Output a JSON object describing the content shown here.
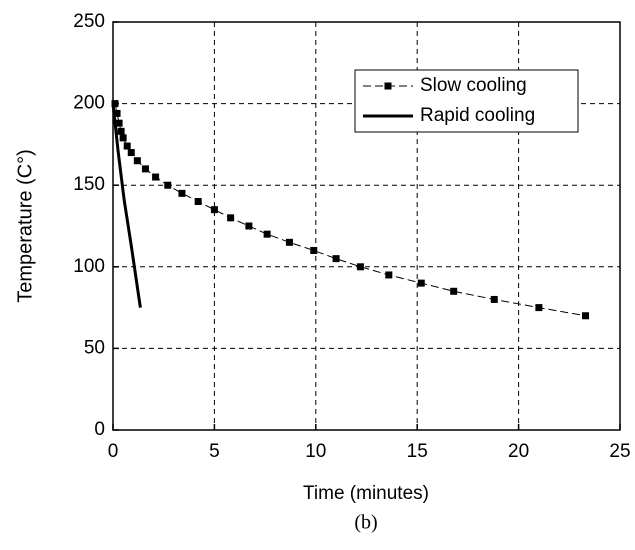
{
  "chart_data": {
    "type": "line",
    "xlabel": "Time (minutes)",
    "ylabel": "Temperature (C°)",
    "caption": "(b)",
    "xlim": [
      0,
      25
    ],
    "xticks": [
      0,
      5,
      10,
      15,
      20,
      25
    ],
    "ylim": [
      0,
      250
    ],
    "yticks": [
      0,
      50,
      100,
      150,
      200,
      250
    ],
    "grid": true,
    "legend": "upper right",
    "series": [
      {
        "name": "Slow cooling",
        "color": "#000000",
        "line_style": "dashed",
        "marker": "square",
        "x": [
          0.1,
          0.2,
          0.3,
          0.4,
          0.5,
          0.7,
          0.9,
          1.2,
          1.6,
          2.1,
          2.7,
          3.4,
          4.2,
          5.0,
          5.8,
          6.7,
          7.6,
          8.7,
          9.9,
          11.0,
          12.2,
          13.6,
          15.2,
          16.8,
          18.8,
          21.0,
          23.3
        ],
        "values": [
          200,
          194,
          188,
          183,
          179,
          174,
          170,
          165,
          160,
          155,
          150,
          145,
          140,
          135,
          130,
          125,
          120,
          115,
          110,
          105,
          100,
          95,
          90,
          85,
          80,
          75,
          70
        ]
      },
      {
        "name": "Rapid cooling",
        "color": "#000000",
        "line_style": "solid",
        "x": [
          0,
          0.25,
          0.55,
          0.9,
          1.35
        ],
        "values": [
          200,
          171,
          141,
          113,
          75
        ]
      }
    ]
  }
}
